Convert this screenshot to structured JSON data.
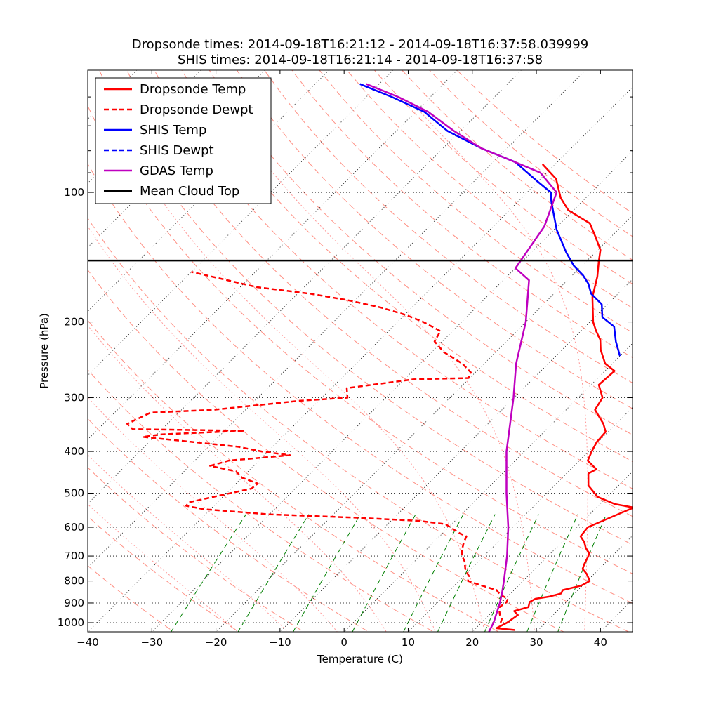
{
  "chart_data": {
    "type": "line",
    "subtype": "skew-t",
    "title_lines": [
      "Dropsonde times: 2014-09-18T16:21:12 - 2014-09-18T16:37:58.039999",
      "SHIS times: 2014-09-18T16:21:14 - 2014-09-18T16:37:58"
    ],
    "xlabel": "Temperature (C)",
    "ylabel": "Pressure (hPa)",
    "xlim": [
      -40,
      45
    ],
    "ylim": [
      1050,
      52
    ],
    "xticks": [
      -40,
      -30,
      -20,
      -10,
      0,
      10,
      20,
      30,
      40
    ],
    "ytick_labels": [
      100,
      200,
      300,
      400,
      500,
      600,
      700,
      800,
      900,
      1000
    ],
    "yscale": "log",
    "skew": "isotherms tilt 45 degrees to the right",
    "grid": true,
    "legend_position": "top-left",
    "colors": {
      "dropsonde": "#ff0000",
      "shis": "#0000ff",
      "gdas": "#bf00bf",
      "cloud_top": "#000000",
      "dry_adiabat": "#ff6a5a",
      "moist_adiabat": "#ff8080",
      "mixing_ratio": "#008000",
      "isobar": "#000000"
    },
    "series": [
      {
        "name": "Dropsonde Temp",
        "color": "#ff0000",
        "style": "solid",
        "points": [
          [
            26.4,
            1040
          ],
          [
            23.2,
            1030
          ],
          [
            24.0,
            1000
          ],
          [
            24.5,
            960
          ],
          [
            23.3,
            940
          ],
          [
            24.9,
            920
          ],
          [
            24.3,
            895
          ],
          [
            24.7,
            880
          ],
          [
            26.5,
            870
          ],
          [
            27.9,
            855
          ],
          [
            27.6,
            840
          ],
          [
            29.8,
            820
          ],
          [
            30.4,
            800
          ],
          [
            28.8,
            770
          ],
          [
            27.4,
            750
          ],
          [
            26.9,
            730
          ],
          [
            26.3,
            700
          ],
          [
            26.0,
            690
          ],
          [
            24.6,
            670
          ],
          [
            23.5,
            650
          ],
          [
            22.0,
            630
          ],
          [
            21.7,
            600
          ],
          [
            25.8,
            540
          ],
          [
            22.3,
            530
          ],
          [
            18.5,
            510
          ],
          [
            15.3,
            480
          ],
          [
            13.4,
            450
          ],
          [
            14.0,
            440
          ],
          [
            11.3,
            420
          ],
          [
            10.5,
            400
          ],
          [
            9.8,
            380
          ],
          [
            9.6,
            360
          ],
          [
            8.0,
            345
          ],
          [
            4.5,
            320
          ],
          [
            3.8,
            300
          ],
          [
            1.2,
            280
          ],
          [
            1.5,
            260
          ],
          [
            -1.1,
            250
          ],
          [
            -4.0,
            232
          ],
          [
            -5.6,
            220
          ],
          [
            -7.6,
            210
          ],
          [
            -9.5,
            200
          ],
          [
            -13.5,
            175
          ],
          [
            -15.9,
            157
          ],
          [
            -18.0,
            145
          ],
          [
            -19.6,
            136
          ],
          [
            -23.0,
            125
          ],
          [
            -25.4,
            118
          ],
          [
            -30.8,
            110
          ],
          [
            -33.9,
            103
          ],
          [
            -37.6,
            93
          ],
          [
            -42.0,
            86
          ]
        ]
      },
      {
        "name": "Dropsonde Dewpt",
        "color": "#ff0000",
        "style": "dashed",
        "points": [
          [
            23.0,
            1000
          ],
          [
            22.6,
            980
          ],
          [
            21.7,
            960
          ],
          [
            21.0,
            940
          ],
          [
            20.4,
            920
          ],
          [
            20.7,
            895
          ],
          [
            20.4,
            880
          ],
          [
            18.5,
            860
          ],
          [
            17.3,
            840
          ],
          [
            14.3,
            820
          ],
          [
            11.4,
            800
          ],
          [
            10.8,
            780
          ],
          [
            9.1,
            750
          ],
          [
            7.8,
            720
          ],
          [
            6.6,
            700
          ],
          [
            5.7,
            680
          ],
          [
            4.7,
            650
          ],
          [
            4.2,
            630
          ],
          [
            2.7,
            620
          ],
          [
            -1.0,
            590
          ],
          [
            -5.6,
            580
          ],
          [
            -16.0,
            570
          ],
          [
            -30.0,
            560
          ],
          [
            -41.0,
            545
          ],
          [
            -44.3,
            535
          ],
          [
            -44.4,
            525
          ],
          [
            -40.4,
            505
          ],
          [
            -36.8,
            488
          ],
          [
            -36.6,
            475
          ],
          [
            -40.0,
            460
          ],
          [
            -41.9,
            445
          ],
          [
            -46.8,
            432
          ],
          [
            -44.7,
            420
          ],
          [
            -36.0,
            408
          ],
          [
            -41.0,
            400
          ],
          [
            -45.4,
            390
          ],
          [
            -53.5,
            380
          ],
          [
            -61.8,
            370
          ],
          [
            -59.2,
            365
          ],
          [
            -46.9,
            358
          ],
          [
            -64.6,
            355
          ],
          [
            -66.3,
            345
          ],
          [
            -64.4,
            325
          ],
          [
            -55.0,
            320
          ],
          [
            -43.0,
            305
          ],
          [
            -36.0,
            300
          ],
          [
            -37.6,
            285
          ],
          [
            -28.6,
            272
          ],
          [
            -20.2,
            270
          ],
          [
            -20.7,
            262
          ],
          [
            -23.4,
            250
          ],
          [
            -28.1,
            235
          ],
          [
            -31.2,
            222
          ],
          [
            -31.9,
            210
          ],
          [
            -36.0,
            200
          ],
          [
            -39.6,
            193
          ],
          [
            -45.0,
            185
          ],
          [
            -51.2,
            178
          ],
          [
            -58.0,
            172
          ],
          [
            -67.4,
            166
          ],
          [
            -75.0,
            158
          ],
          [
            -80.0,
            153
          ]
        ]
      },
      {
        "name": "SHIS Temp",
        "color": "#0000ff",
        "style": "solid",
        "points": [
          [
            0.0,
            240
          ],
          [
            -2.9,
            222
          ],
          [
            -5.5,
            205
          ],
          [
            -8.8,
            195
          ],
          [
            -10.9,
            182
          ],
          [
            -14.2,
            172
          ],
          [
            -16.2,
            163
          ],
          [
            -18.3,
            156
          ],
          [
            -21.3,
            148
          ],
          [
            -24.5,
            138
          ],
          [
            -29.6,
            122
          ],
          [
            -34.8,
            105
          ],
          [
            -36.3,
            100
          ],
          [
            -40.3,
            94
          ],
          [
            -46.6,
            85
          ],
          [
            -54.0,
            79
          ],
          [
            -62.0,
            72
          ],
          [
            -68.6,
            65
          ],
          [
            -76.0,
            60
          ],
          [
            -83.0,
            56
          ]
        ]
      },
      {
        "name": "SHIS Dewpt",
        "color": "#0000ff",
        "style": "dashed",
        "points": []
      },
      {
        "name": "GDAS Temp",
        "color": "#bf00bf",
        "style": "solid",
        "points": [
          [
            22.6,
            1050
          ],
          [
            21.9,
            1000
          ],
          [
            21.3,
            970
          ],
          [
            19.8,
            900
          ],
          [
            18.5,
            850
          ],
          [
            17.0,
            800
          ],
          [
            13.6,
            700
          ],
          [
            9.3,
            600
          ],
          [
            3.7,
            500
          ],
          [
            -2.8,
            400
          ],
          [
            -10.1,
            300
          ],
          [
            -15.0,
            250
          ],
          [
            -20.0,
            200
          ],
          [
            -26.0,
            160
          ],
          [
            -30.0,
            150
          ],
          [
            -32.0,
            120
          ],
          [
            -35.4,
            100
          ],
          [
            -41.0,
            90
          ],
          [
            -49.0,
            83
          ],
          [
            -54.0,
            79
          ],
          [
            -61.0,
            72
          ],
          [
            -68.0,
            65
          ],
          [
            -75.0,
            60
          ],
          [
            -82.0,
            56
          ]
        ]
      },
      {
        "name": "Mean Cloud Top",
        "color": "#000000",
        "style": "solid",
        "pressure": 144
      }
    ],
    "legend": [
      {
        "label": "Dropsonde Temp",
        "color": "#ff0000",
        "style": "solid"
      },
      {
        "label": "Dropsonde Dewpt",
        "color": "#ff0000",
        "style": "dashed"
      },
      {
        "label": "SHIS Temp",
        "color": "#0000ff",
        "style": "solid"
      },
      {
        "label": "SHIS Dewpt",
        "color": "#0000ff",
        "style": "dashed"
      },
      {
        "label": "GDAS Temp",
        "color": "#bf00bf",
        "style": "solid"
      },
      {
        "label": "Mean Cloud Top",
        "color": "#000000",
        "style": "solid"
      }
    ]
  }
}
